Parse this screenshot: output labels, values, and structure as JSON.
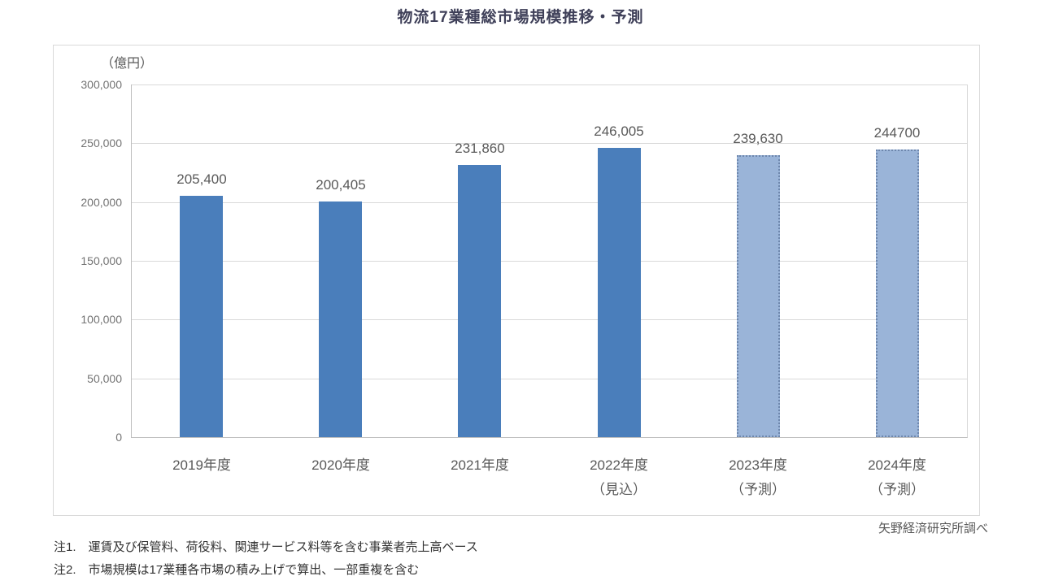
{
  "chart_data": {
    "type": "bar",
    "title": "物流17業種総市場規模推移・予測",
    "unit_label": "（億円）",
    "xlabel": "",
    "ylabel": "",
    "ylim": [
      0,
      300000
    ],
    "ytick_interval": 50000,
    "ytick_labels": [
      "300,000",
      "250,000",
      "200,000",
      "150,000",
      "100,000",
      "50,000",
      "0"
    ],
    "grid": true,
    "legend_position": "none",
    "categories": [
      {
        "line1": "2019年度",
        "line2": ""
      },
      {
        "line1": "2020年度",
        "line2": ""
      },
      {
        "line1": "2021年度",
        "line2": ""
      },
      {
        "line1": "2022年度",
        "line2": "（見込）"
      },
      {
        "line1": "2023年度",
        "line2": "（予測）"
      },
      {
        "line1": "2024年度",
        "line2": "（予測）"
      }
    ],
    "values": [
      205400,
      200405,
      231860,
      246005,
      239630,
      244700
    ],
    "value_labels": [
      "205,400",
      "200,405",
      "231,860",
      "246,005",
      "239,630",
      "244700"
    ],
    "forecast": [
      false,
      false,
      false,
      false,
      true,
      true
    ],
    "colors": {
      "bar_actual": "#4a7ebb",
      "bar_forecast_fill": "#9ab4d8",
      "bar_forecast_border": "#6e87ad",
      "gridline": "#d9d9d9",
      "axis_line": "#bfbfbf"
    }
  },
  "footer": {
    "source": "矢野経済研究所調べ",
    "notes": [
      "注1.　運賃及び保管料、荷役料、関連サービス料等を含む事業者売上高ベース",
      "注2.　市場規模は17業種各市場の積み上げで算出、一部重複を含む"
    ]
  }
}
